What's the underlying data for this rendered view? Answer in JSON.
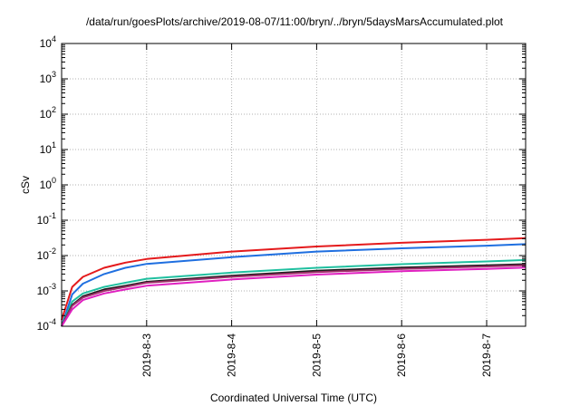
{
  "chart_data": {
    "type": "line",
    "title": "/data/run/goesPlots/archive/2019-08-07/11:00/bryn/../bryn/5daysMarsAccumulated.plot",
    "xlabel": "Coordinated Universal Time (UTC)",
    "ylabel": "cSv",
    "x_axis": {
      "type": "date",
      "range": [
        "2019-08-02T00:00",
        "2019-08-07T11:00"
      ],
      "ticks": [
        "2019-8-3",
        "2019-8-4",
        "2019-8-5",
        "2019-8-6",
        "2019-8-7"
      ]
    },
    "y_axis": {
      "scale": "log",
      "range": [
        0.0001,
        10000
      ],
      "ticks": [
        {
          "value": 0.0001,
          "base": "10",
          "exp": "-4"
        },
        {
          "value": 0.001,
          "base": "10",
          "exp": "-3"
        },
        {
          "value": 0.01,
          "base": "10",
          "exp": "-2"
        },
        {
          "value": 0.1,
          "base": "10",
          "exp": "-1"
        },
        {
          "value": 1,
          "base": "10",
          "exp": "0"
        },
        {
          "value": 10,
          "base": "10",
          "exp": "1"
        },
        {
          "value": 100,
          "base": "10",
          "exp": "2"
        },
        {
          "value": 1000,
          "base": "10",
          "exp": "3"
        },
        {
          "value": 10000,
          "base": "10",
          "exp": "4"
        }
      ]
    },
    "grid": true,
    "series": [
      {
        "color": "#e41a1c",
        "x": [
          "2019-08-02T00:00",
          "2019-08-02T03:00",
          "2019-08-02T06:00",
          "2019-08-02T12:00",
          "2019-08-02T18:00",
          "2019-08-03T00:00",
          "2019-08-04T00:00",
          "2019-08-05T00:00",
          "2019-08-06T00:00",
          "2019-08-07T00:00",
          "2019-08-07T11:00"
        ],
        "values": [
          0.00015,
          0.0013,
          0.0025,
          0.0045,
          0.0063,
          0.008,
          0.013,
          0.018,
          0.023,
          0.028,
          0.031
        ]
      },
      {
        "color": "#1f6fe0",
        "x": [
          "2019-08-02T00:00",
          "2019-08-02T03:00",
          "2019-08-02T06:00",
          "2019-08-02T12:00",
          "2019-08-02T18:00",
          "2019-08-03T00:00",
          "2019-08-04T00:00",
          "2019-08-05T00:00",
          "2019-08-06T00:00",
          "2019-08-07T00:00",
          "2019-08-07T11:00"
        ],
        "values": [
          0.0001,
          0.0008,
          0.0016,
          0.003,
          0.0045,
          0.0058,
          0.009,
          0.013,
          0.016,
          0.019,
          0.021
        ]
      },
      {
        "color": "#20c0a0",
        "x": [
          "2019-08-02T00:00",
          "2019-08-02T03:00",
          "2019-08-02T06:00",
          "2019-08-02T12:00",
          "2019-08-02T18:00",
          "2019-08-03T00:00",
          "2019-08-04T00:00",
          "2019-08-05T00:00",
          "2019-08-06T00:00",
          "2019-08-07T00:00",
          "2019-08-07T11:00"
        ],
        "values": [
          0.0001,
          0.0005,
          0.00085,
          0.0013,
          0.0017,
          0.0022,
          0.0033,
          0.0045,
          0.0057,
          0.0068,
          0.0075
        ]
      },
      {
        "color": "#1a1a1a",
        "x": [
          "2019-08-02T00:00",
          "2019-08-02T03:00",
          "2019-08-02T06:00",
          "2019-08-02T12:00",
          "2019-08-02T18:00",
          "2019-08-03T00:00",
          "2019-08-04T00:00",
          "2019-08-05T00:00",
          "2019-08-06T00:00",
          "2019-08-07T00:00",
          "2019-08-07T11:00"
        ],
        "values": [
          0.0001,
          0.0004,
          0.0007,
          0.0011,
          0.0014,
          0.0018,
          0.0027,
          0.0037,
          0.0046,
          0.0053,
          0.0057
        ]
      },
      {
        "color": "#a0306a",
        "x": [
          "2019-08-02T00:00",
          "2019-08-02T03:00",
          "2019-08-02T06:00",
          "2019-08-02T12:00",
          "2019-08-02T18:00",
          "2019-08-03T00:00",
          "2019-08-04T00:00",
          "2019-08-05T00:00",
          "2019-08-06T00:00",
          "2019-08-07T00:00",
          "2019-08-07T11:00"
        ],
        "values": [
          0.0001,
          0.00038,
          0.00065,
          0.001,
          0.0013,
          0.0017,
          0.0025,
          0.0034,
          0.0042,
          0.0049,
          0.0053
        ]
      },
      {
        "color": "#e020c0",
        "x": [
          "2019-08-02T00:00",
          "2019-08-02T03:00",
          "2019-08-02T06:00",
          "2019-08-02T12:00",
          "2019-08-02T18:00",
          "2019-08-03T00:00",
          "2019-08-04T00:00",
          "2019-08-05T00:00",
          "2019-08-06T00:00",
          "2019-08-07T00:00",
          "2019-08-07T11:00"
        ],
        "values": [
          0.0001,
          0.0003,
          0.00055,
          0.00085,
          0.0011,
          0.0014,
          0.0021,
          0.0029,
          0.0036,
          0.0042,
          0.0046
        ]
      }
    ]
  }
}
